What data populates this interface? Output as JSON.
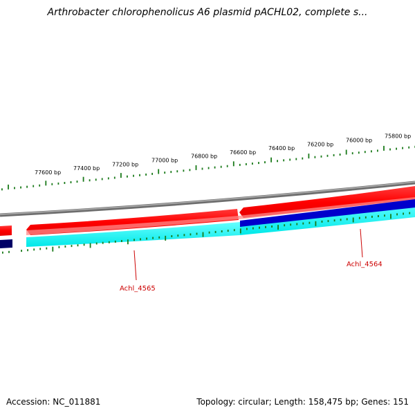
{
  "title": "Arthrobacter chlorophenolicus A6 plasmid pACHL02, complete s...",
  "footer": {
    "accession": "Accession: NC_011881",
    "summary": "Topology: circular; Length: 158,475 bp; Genes: 151"
  },
  "ruler": {
    "labels": [
      "77600 bp",
      "77400 bp",
      "77200 bp",
      "77000 bp",
      "76800 bp",
      "76600 bp",
      "76400 bp",
      "76200 bp",
      "76000 bp",
      "75800 bp"
    ]
  },
  "genes": [
    {
      "label": "Achl_4565",
      "color": "#cc0000"
    },
    {
      "label": "Achl_4564",
      "color": "#cc0000"
    }
  ],
  "colors": {
    "backbone": "#8c8c8c",
    "forward_cds": "#ff0000",
    "forward_cds_dark": "#cc0000",
    "reverse_cds": "#00ffff",
    "reverse_blue": "#0000cc",
    "reverse_navy": "#000066",
    "tick": "#1a7a1a"
  }
}
